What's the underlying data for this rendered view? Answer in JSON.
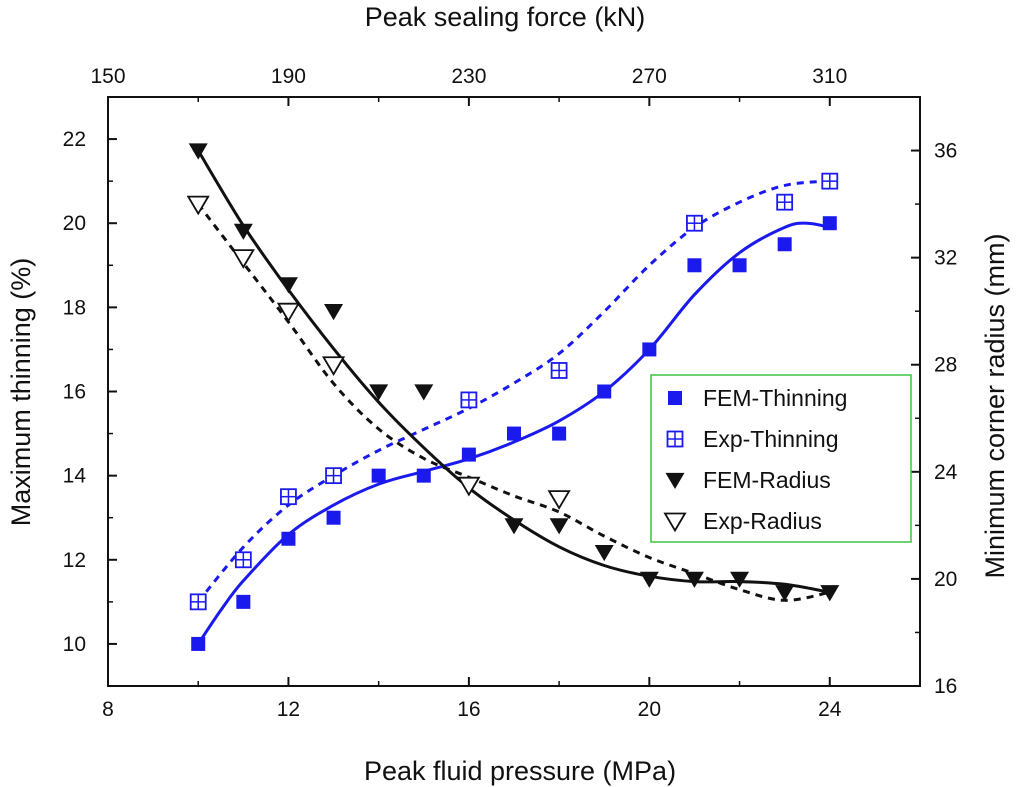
{
  "chart_data": {
    "type": "scatter",
    "title": "",
    "top_xlabel": "Peak sealing force (kN)",
    "xlabel": "Peak fluid pressure (MPa)",
    "ylabel": "Maximum thinning (%)",
    "y2label": "Minimum corner radius (mm)",
    "xlim": [
      8,
      26
    ],
    "ylim": [
      9,
      23
    ],
    "y2lim": [
      16,
      38
    ],
    "top_xlim": [
      150,
      330
    ],
    "x_ticks": [
      "8",
      "12",
      "16",
      "20",
      "24"
    ],
    "x_tick_values": [
      8,
      12,
      16,
      20,
      24
    ],
    "top_x_ticks": [
      "150",
      "190",
      "230",
      "270",
      "310"
    ],
    "top_x_tick_values": [
      150,
      190,
      230,
      270,
      310
    ],
    "y_ticks": [
      "10",
      "12",
      "14",
      "16",
      "18",
      "20",
      "22"
    ],
    "y_tick_values": [
      10,
      12,
      14,
      16,
      18,
      20,
      22
    ],
    "y2_ticks": [
      "16",
      "20",
      "24",
      "28",
      "32",
      "36"
    ],
    "y2_tick_values": [
      16,
      20,
      24,
      28,
      32,
      36
    ],
    "grid": false,
    "legend_position": "center-right",
    "series": [
      {
        "name": "FEM-Thinning",
        "axis": "left",
        "marker": "filled-square",
        "color": "#1a1aee",
        "line": "solid",
        "x": [
          10,
          11,
          12,
          13,
          14,
          15,
          16,
          17,
          18,
          19,
          20,
          21,
          22,
          23,
          24
        ],
        "y": [
          10.0,
          11.0,
          12.5,
          13.0,
          14.0,
          14.0,
          14.5,
          15.0,
          15.0,
          16.0,
          17.0,
          19.0,
          19.0,
          19.5,
          20.0
        ],
        "curve_x": [
          10,
          10.5,
          11,
          12,
          13,
          14,
          15,
          16,
          17,
          18,
          19,
          20,
          21,
          22,
          23,
          23.5,
          24
        ],
        "curve_y": [
          10.0,
          10.8,
          11.5,
          12.6,
          13.3,
          13.8,
          14.1,
          14.4,
          14.8,
          15.3,
          16.0,
          17.0,
          18.3,
          19.3,
          19.9,
          20.0,
          19.9
        ]
      },
      {
        "name": "Exp-Thinning",
        "axis": "left",
        "marker": "open-square-cross",
        "color": "#1a1aee",
        "line": "dashed",
        "x": [
          10,
          11,
          12,
          13,
          16,
          18,
          21,
          23,
          24
        ],
        "y": [
          11.0,
          12.0,
          13.5,
          14.0,
          15.8,
          16.5,
          20.0,
          20.5,
          21.0
        ],
        "curve_x": [
          10,
          11,
          12,
          13,
          14,
          15,
          16,
          17,
          18,
          19,
          20,
          21,
          22,
          23,
          24
        ],
        "curve_y": [
          11.0,
          12.3,
          13.3,
          14.0,
          14.6,
          15.1,
          15.6,
          16.2,
          16.9,
          17.9,
          19.0,
          19.9,
          20.5,
          20.9,
          21.0
        ]
      },
      {
        "name": "FEM-Radius",
        "axis": "right",
        "marker": "filled-triangle-down",
        "color": "#111111",
        "line": "solid",
        "x": [
          10,
          11,
          12,
          13,
          14,
          15,
          16,
          17,
          18,
          19,
          20,
          21,
          22,
          23,
          24
        ],
        "y": [
          36,
          33,
          31,
          30,
          27,
          27,
          23.5,
          22,
          22,
          21,
          20,
          20,
          20,
          19.5,
          19.5
        ],
        "curve_x": [
          10,
          11,
          12,
          13,
          14,
          15,
          16,
          17,
          18,
          19,
          20,
          21,
          22,
          23,
          24
        ],
        "curve_y": [
          36.0,
          33.2,
          30.8,
          28.6,
          26.6,
          24.9,
          23.4,
          22.2,
          21.2,
          20.5,
          20.1,
          19.9,
          19.9,
          19.8,
          19.5
        ]
      },
      {
        "name": "Exp-Radius",
        "axis": "right",
        "marker": "open-triangle-down",
        "color": "#111111",
        "line": "dashed",
        "x": [
          10,
          11,
          12,
          13,
          16,
          18
        ],
        "y": [
          34,
          32,
          30,
          28,
          23.5,
          23
        ],
        "curve_x": [
          10,
          11,
          12,
          13,
          14,
          15,
          16,
          17,
          18,
          19,
          20,
          21,
          22,
          23,
          24
        ],
        "curve_y": [
          34.0,
          31.8,
          29.6,
          27.3,
          25.6,
          24.5,
          23.8,
          23.1,
          22.5,
          21.6,
          20.8,
          20.2,
          19.6,
          19.2,
          19.5
        ]
      }
    ]
  }
}
